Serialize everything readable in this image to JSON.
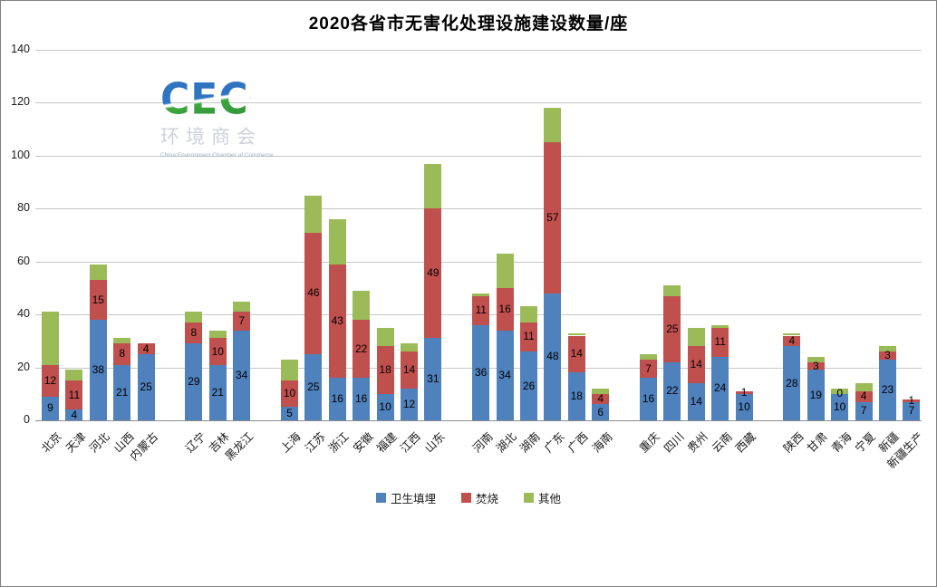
{
  "title": "2020各省市无害化处理设施建设数量/座",
  "logo": {
    "text": "CECC",
    "name_cn": "环境商会",
    "caption": "China Environment Chamber of Commerce"
  },
  "chart_data": {
    "type": "bar",
    "stacked": true,
    "title": "2020各省市无害化处理设施建设数量/座",
    "xlabel": "",
    "ylabel": "",
    "ylim": [
      0,
      140
    ],
    "yticks": [
      0,
      20,
      40,
      60,
      80,
      100,
      120,
      140
    ],
    "grid": true,
    "legend_position": "bottom-center",
    "categories": [
      "北京",
      "天津",
      "河北",
      "山西",
      "内蒙古",
      "辽宁",
      "吉林",
      "黑龙江",
      "上海",
      "江苏",
      "浙江",
      "安徽",
      "福建",
      "江西",
      "山东",
      "河南",
      "湖北",
      "湖南",
      "广东",
      "广西",
      "海南",
      "重庆",
      "四川",
      "贵州",
      "云南",
      "西藏",
      "陕西",
      "甘肃",
      "青海",
      "宁夏",
      "新疆",
      "新疆生产"
    ],
    "group_sizes": [
      5,
      3,
      7,
      6,
      5,
      6
    ],
    "series": [
      {
        "name": "卫生填埋",
        "color": "#4F81BD",
        "show_labels": true,
        "values": [
          9,
          4,
          38,
          21,
          25,
          29,
          21,
          34,
          5,
          25,
          16,
          16,
          10,
          12,
          31,
          36,
          34,
          26,
          48,
          18,
          6,
          16,
          22,
          14,
          24,
          10,
          28,
          19,
          10,
          7,
          23,
          7
        ]
      },
      {
        "name": "焚烧",
        "color": "#C0504D",
        "show_labels": true,
        "values": [
          12,
          11,
          15,
          8,
          4,
          8,
          10,
          7,
          10,
          46,
          43,
          22,
          18,
          14,
          49,
          11,
          16,
          11,
          57,
          14,
          4,
          7,
          25,
          14,
          11,
          1,
          4,
          3,
          0,
          4,
          3,
          1
        ]
      },
      {
        "name": "其他",
        "color": "#9BBB59",
        "show_labels": false,
        "values": [
          20,
          4,
          6,
          2,
          0,
          4,
          3,
          4,
          8,
          14,
          17,
          11,
          7,
          3,
          17,
          1,
          13,
          6,
          13,
          1,
          2,
          2,
          4,
          7,
          1,
          0,
          1,
          2,
          2,
          3,
          2,
          0
        ]
      }
    ]
  },
  "colors": {
    "gridline": "#C6C6C6",
    "zero_line": "#8C8C8C",
    "frame_border": "#808080",
    "background": "#FFFFFF",
    "bar_label_text": "#000000",
    "logo_blue": "#2F74C0",
    "logo_green": "#3DA63C"
  }
}
